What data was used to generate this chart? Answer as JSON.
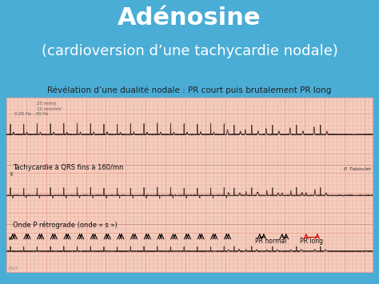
{
  "title_line1": "Adénosine",
  "title_line2": "(cardioversion d’une tachycardie nodale)",
  "subtitle": "Révélation d’une dualité nodale : PR court puis brutalement PR long",
  "header_bg_color": "#4aadd6",
  "body_bg_color": "#f5f5f0",
  "ecg_bg_color": "#f5cec0",
  "grid_color": "#e8a090",
  "ecg_line_color": "#4a3530",
  "title_color": "#ffffff",
  "subtitle_color": "#222222",
  "annotation_color": "#111111",
  "red_arrow_color": "#cc0000",
  "label1": "Tachycardie à QRS fins à 160/mn",
  "label2": "Onde P rétrograde (onde « s »)",
  "label3": "PR normal",
  "label4": "PR long",
  "label5": "P. Taboulet",
  "label6": "25 mm/s",
  "label7": "10 mm/mV",
  "label8": "0.05 Hz - 40 Hz",
  "label9": "J3a7"
}
